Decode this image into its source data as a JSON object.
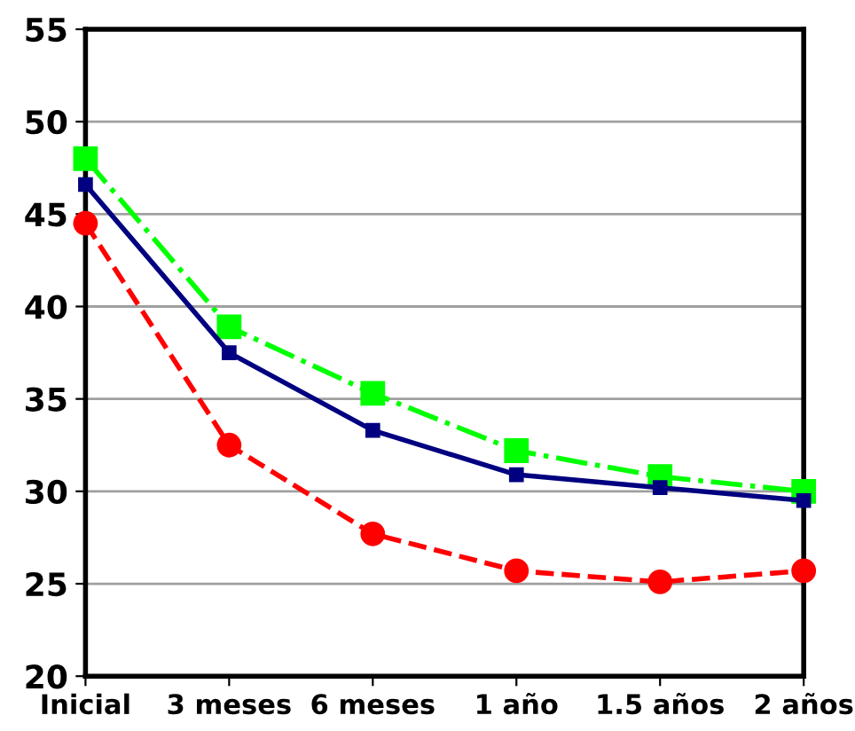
{
  "chart_data": {
    "type": "line",
    "categories": [
      "Inicial",
      "3 meses",
      "6 meses",
      "1 año",
      "1.5 años",
      "2 años"
    ],
    "series": [
      {
        "color": "#00ff00",
        "marker": "square",
        "line_style": "dashdot",
        "values": [
          48.0,
          38.9,
          35.3,
          32.2,
          30.8,
          30.0
        ]
      },
      {
        "color": "#000080",
        "marker": "square",
        "line_style": "solid",
        "values": [
          46.6,
          37.5,
          33.3,
          30.9,
          30.2,
          29.5
        ]
      },
      {
        "color": "#ff0000",
        "marker": "circle",
        "line_style": "dashed",
        "values": [
          44.5,
          32.5,
          27.7,
          25.7,
          25.1,
          25.7
        ]
      }
    ],
    "ylim": [
      20,
      55
    ],
    "yticks": [
      20,
      25,
      30,
      35,
      40,
      45,
      50,
      55
    ],
    "grid": "y",
    "legend": false
  }
}
